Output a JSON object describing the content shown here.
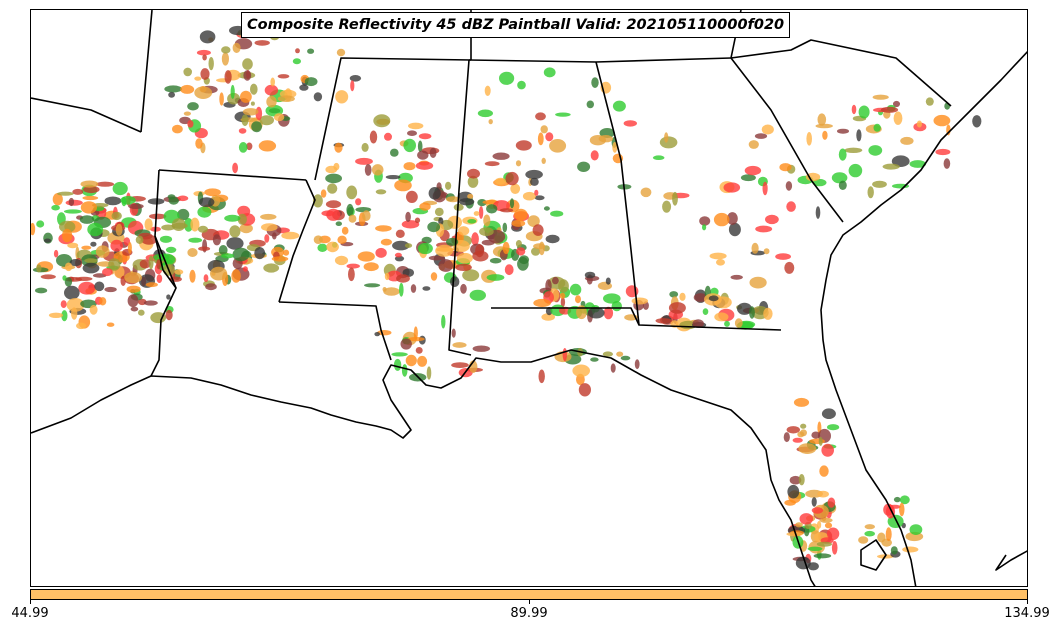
{
  "title": "Composite Reflectivity 45 dBZ Paintball Valid: 202105110000f020",
  "colorbar": {
    "color": "#ffc066",
    "tick_labels": [
      "44.99",
      "89.99",
      "134.99"
    ]
  },
  "paintball_colors": [
    "#ff3b3b",
    "#2ecc2e",
    "#ff8c1a",
    "#8b3a3a",
    "#2f7a2f",
    "#9c9c3a",
    "#ffb347",
    "#3a3a3a",
    "#c0392b",
    "#e6a23c"
  ],
  "map": {
    "states_shown": [
      "Arkansas",
      "Louisiana",
      "Mississippi",
      "Alabama",
      "Georgia",
      "Florida",
      "South Carolina",
      "Tennessee",
      "Texas"
    ],
    "boundary_color": "#000000"
  }
}
